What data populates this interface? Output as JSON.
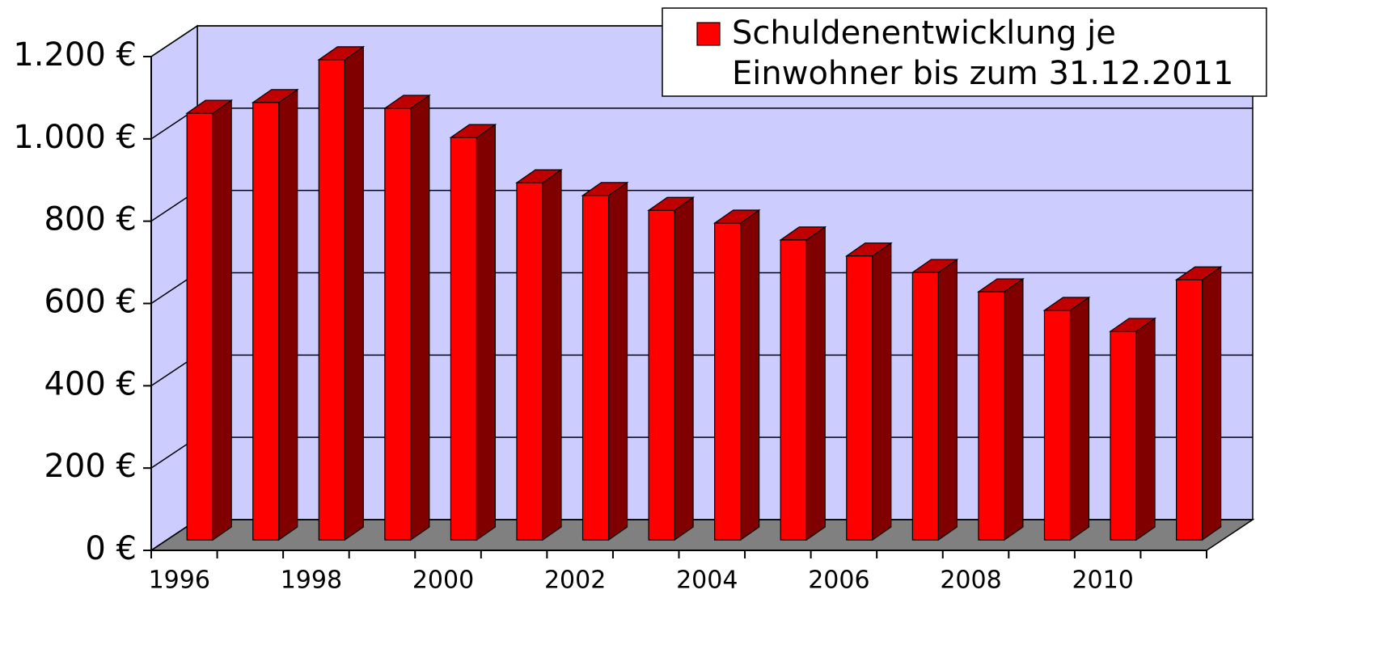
{
  "chart_data": {
    "type": "bar3d",
    "categories": [
      "1996",
      null,
      "1998",
      null,
      "2000",
      null,
      "2002",
      null,
      "2004",
      null,
      "2006",
      null,
      "2008",
      null,
      "2010",
      null
    ],
    "series": [
      {
        "name": "Schuldenentwicklung je Einwohner bis zum 31.12.2011",
        "color": "#ff0000",
        "values": [
          1037,
          1063,
          1167,
          1049,
          978,
          868,
          837,
          801,
          770,
          729,
          690,
          650,
          603,
          558,
          507,
          632
        ]
      }
    ],
    "ylim": [
      0,
      1200
    ],
    "yticks": [
      {
        "value": 0,
        "label": "0 €"
      },
      {
        "value": 200,
        "label": "200 €"
      },
      {
        "value": 400,
        "label": "400 €"
      },
      {
        "value": 600,
        "label": "600 €"
      },
      {
        "value": 800,
        "label": "800 €"
      },
      {
        "value": 1000,
        "label": "1.000 €"
      },
      {
        "value": 1200,
        "label": "1.200 €"
      }
    ],
    "grid": true,
    "legend": "top-right"
  }
}
